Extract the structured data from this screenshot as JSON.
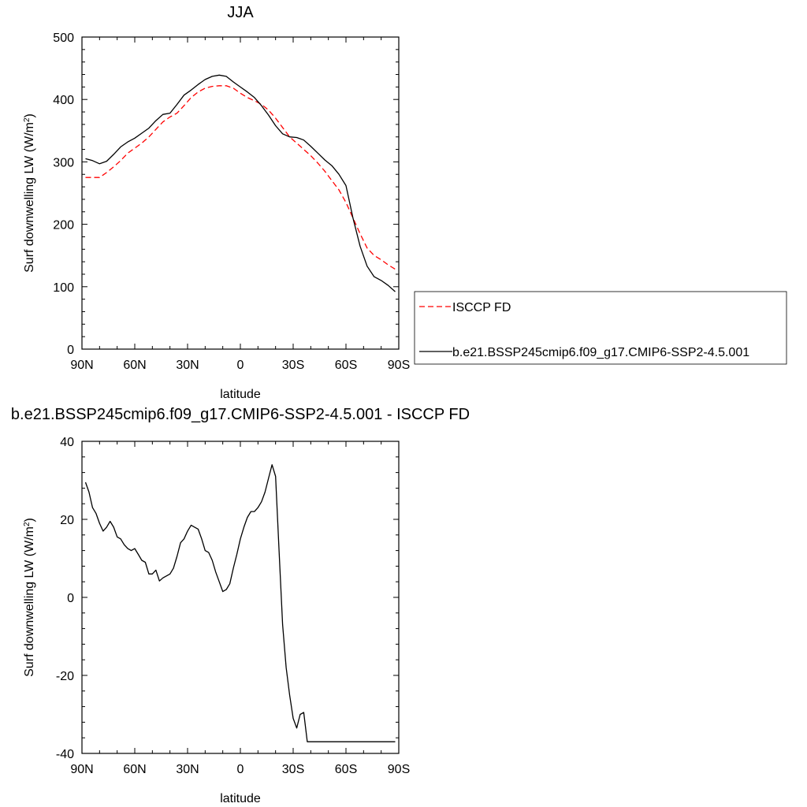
{
  "chart_data": [
    {
      "type": "line",
      "title": "JJA",
      "xlabel": "latitude",
      "ylabel": "Surf downwelling LW (W/m2)",
      "ylabel_parts": {
        "main": "Surf downwelling LW (W/m",
        "sup": "2",
        "end": ")"
      },
      "xlim": [
        90,
        -90
      ],
      "ylim": [
        0,
        500
      ],
      "x_ticks": [
        90,
        60,
        30,
        0,
        -30,
        -60,
        -90
      ],
      "x_tick_labels": [
        "90N",
        "60N",
        "30N",
        "0",
        "30S",
        "60S",
        "90S"
      ],
      "y_ticks": [
        0,
        100,
        200,
        300,
        400,
        500
      ],
      "y_tick_labels": [
        "0",
        "100",
        "200",
        "300",
        "400",
        "500"
      ],
      "legend_position": "right",
      "series": [
        {
          "name": "ISCCP FD",
          "color": "#ff0000",
          "dash": "dashed",
          "x": [
            88,
            84,
            80,
            76,
            72,
            68,
            64,
            60,
            56,
            52,
            48,
            44,
            40,
            36,
            32,
            28,
            24,
            20,
            16,
            12,
            8,
            4,
            0,
            -4,
            -8,
            -12,
            -16,
            -20,
            -24,
            -28,
            -32,
            -36,
            -40,
            -44,
            -48,
            -52,
            -56,
            -60,
            -64,
            -68,
            -72,
            -76,
            -80,
            -84,
            -88
          ],
          "values": [
            275,
            275,
            275,
            283,
            292,
            302,
            314,
            322,
            330,
            340,
            352,
            364,
            372,
            378,
            390,
            403,
            412,
            418,
            421,
            422,
            422,
            418,
            410,
            403,
            398,
            392,
            383,
            370,
            355,
            340,
            330,
            320,
            310,
            298,
            285,
            270,
            255,
            235,
            210,
            185,
            162,
            150,
            143,
            135,
            128
          ]
        },
        {
          "name": "b.e21.BSSP245cmip6.f09_g17.CMIP6-SSP2-4.5.001",
          "color": "#000000",
          "dash": "solid",
          "x": [
            88,
            84,
            80,
            76,
            72,
            68,
            64,
            60,
            56,
            52,
            48,
            44,
            40,
            36,
            32,
            28,
            24,
            20,
            16,
            12,
            8,
            4,
            0,
            -4,
            -8,
            -12,
            -16,
            -20,
            -24,
            -28,
            -32,
            -36,
            -40,
            -44,
            -48,
            -52,
            -56,
            -60,
            -64,
            -68,
            -72,
            -76,
            -80,
            -84,
            -88
          ],
          "values": [
            305,
            302,
            297,
            301,
            312,
            324,
            332,
            338,
            346,
            354,
            366,
            376,
            378,
            392,
            407,
            415,
            424,
            432,
            437,
            439,
            437,
            428,
            420,
            412,
            403,
            390,
            375,
            358,
            345,
            340,
            339,
            335,
            325,
            314,
            303,
            294,
            280,
            262,
            210,
            165,
            133,
            116,
            110,
            102,
            92
          ]
        }
      ]
    },
    {
      "type": "line",
      "title": "b.e21.BSSP245cmip6.f09_g17.CMIP6-SSP2-4.5.001 - ISCCP FD",
      "xlabel": "latitude",
      "ylabel": "Surf downwelling LW (W/m2)",
      "ylabel_parts": {
        "main": "Surf downwelling LW (W/m",
        "sup": "2",
        "end": ")"
      },
      "xlim": [
        90,
        -90
      ],
      "ylim": [
        -40,
        40
      ],
      "x_ticks": [
        90,
        60,
        30,
        0,
        -30,
        -60,
        -90
      ],
      "x_tick_labels": [
        "90N",
        "60N",
        "30N",
        "0",
        "30S",
        "60S",
        "90S"
      ],
      "y_ticks": [
        -40,
        -20,
        0,
        20,
        40
      ],
      "y_tick_labels": [
        "-40",
        "-20",
        "0",
        "20",
        "40"
      ],
      "series": [
        {
          "color": "#000000",
          "dash": "solid",
          "x": [
            88,
            86,
            84,
            82,
            80,
            78,
            76,
            74,
            72,
            70,
            68,
            66,
            64,
            62,
            60,
            58,
            56,
            54,
            52,
            50,
            48,
            46,
            44,
            42,
            40,
            38,
            36,
            34,
            32,
            30,
            28,
            26,
            24,
            22,
            20,
            18,
            16,
            14,
            12,
            10,
            8,
            6,
            4,
            2,
            0,
            -2,
            -4,
            -6,
            -8,
            -10,
            -12,
            -14,
            -16,
            -18,
            -20,
            -22,
            -24,
            -26,
            -28,
            -30,
            -32,
            -34,
            -36,
            -38,
            -40,
            -42,
            -44,
            -46,
            -48,
            -50,
            -52,
            -54,
            -56,
            -58,
            -60,
            -62,
            -64,
            -66,
            -68,
            -70,
            -72,
            -74,
            -76,
            -78,
            -80,
            -82,
            -84,
            -86,
            -88
          ],
          "values": [
            29.5,
            27,
            23,
            21.5,
            19,
            17,
            18,
            19.5,
            18,
            15.5,
            15,
            13.5,
            12.5,
            12,
            12.5,
            11,
            9.5,
            9,
            6,
            6,
            7,
            4.2,
            5,
            5.5,
            6,
            7.5,
            10.5,
            14,
            15,
            17,
            18.5,
            18,
            17.5,
            15,
            12,
            11.5,
            9.5,
            6.5,
            4,
            1.5,
            2,
            3.5,
            7.5,
            11,
            15,
            18,
            20.5,
            22,
            22,
            23,
            24.5,
            27,
            30.5,
            34,
            31,
            12,
            -7,
            -18,
            -25,
            -31,
            -33.5,
            -30,
            -29.5,
            -37,
            -37,
            -37,
            -37,
            -37,
            -37,
            -37,
            -37,
            -37,
            -37,
            -37,
            -37,
            -37,
            -37,
            -37,
            -37,
            -37,
            -37,
            -37,
            -37,
            -37,
            -37,
            -37,
            -37,
            -37,
            -37
          ]
        }
      ]
    }
  ]
}
